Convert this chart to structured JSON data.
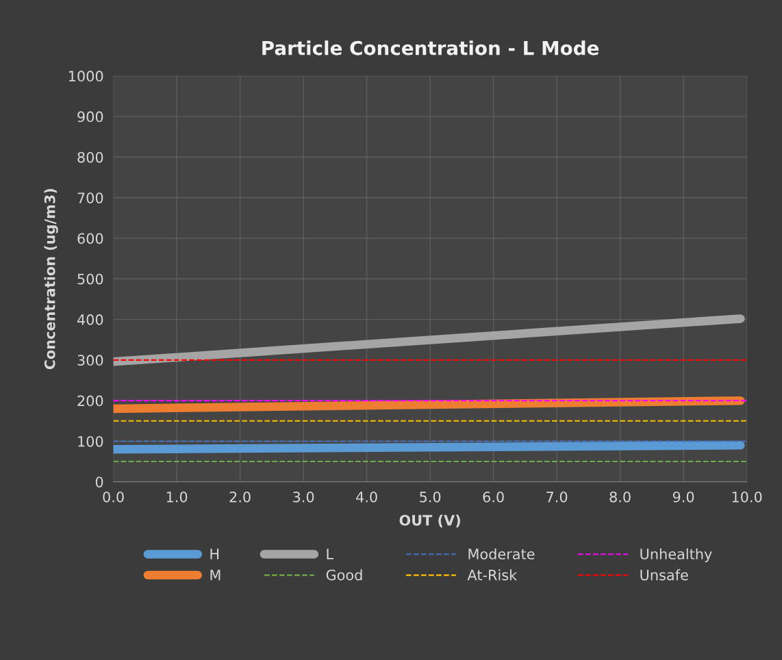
{
  "chart_data": {
    "type": "line",
    "title": "Particle Concentration - L Mode",
    "xlabel": "OUT (V)",
    "ylabel": "Concentration (ug/m3)",
    "xlim": [
      0,
      10
    ],
    "xticks": [
      {
        "value": 0,
        "label": "0.0"
      },
      {
        "value": 1,
        "label": "1.0"
      },
      {
        "value": 2,
        "label": "2.0"
      },
      {
        "value": 3,
        "label": "3.0"
      },
      {
        "value": 4,
        "label": "4.0"
      },
      {
        "value": 5,
        "label": "5.0"
      },
      {
        "value": 6,
        "label": "6.0"
      },
      {
        "value": 7,
        "label": "7.0"
      },
      {
        "value": 8,
        "label": "8.0"
      },
      {
        "value": 9,
        "label": "9.0"
      },
      {
        "value": 10,
        "label": "10.0"
      }
    ],
    "ylim": [
      0,
      1000
    ],
    "yticks": [
      0,
      100,
      200,
      300,
      400,
      500,
      600,
      700,
      800,
      900,
      1000
    ],
    "x": [
      0,
      9.9
    ],
    "series": [
      {
        "name": "H",
        "color": "#5b9bd5",
        "values": [
          80,
          90
        ]
      },
      {
        "name": "M",
        "color": "#ed7d31",
        "values": [
          180,
          200
        ]
      },
      {
        "name": "L",
        "color": "#a5a5a5",
        "values": [
          296,
          402
        ]
      }
    ],
    "ref_lines": [
      {
        "axis": "y",
        "value": 50,
        "label": "Good",
        "color": "#70ad47",
        "line_style": "dashed"
      },
      {
        "axis": "y",
        "value": 100,
        "label": "Moderate",
        "color": "#4472c4",
        "line_style": "dashed"
      },
      {
        "axis": "y",
        "value": 150,
        "label": "At-Risk",
        "color": "#ffc000",
        "line_style": "dashed"
      },
      {
        "axis": "y",
        "value": 200,
        "label": "Unhealthy",
        "color": "#ff00ff",
        "line_style": "dashed"
      },
      {
        "axis": "y",
        "value": 300,
        "label": "Unsafe",
        "color": "#ff0000",
        "line_style": "dashed"
      }
    ],
    "grid": true,
    "legend": "bottom",
    "marker": "none",
    "line_style": "solid"
  }
}
